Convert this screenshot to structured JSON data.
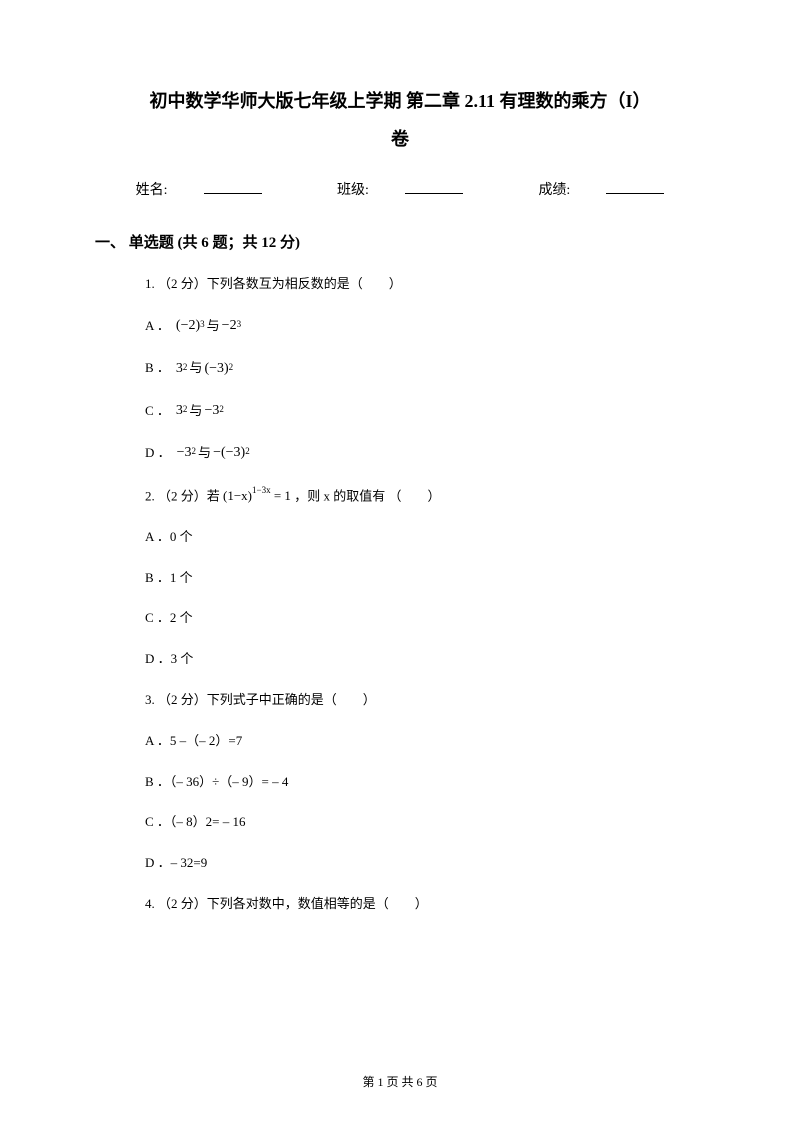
{
  "title_line1": "初中数学华师大版七年级上学期 第二章 2.11 有理数的乘方（I）",
  "title_line2": "卷",
  "info": {
    "name_label": "姓名:",
    "class_label": "班级:",
    "score_label": "成绩:"
  },
  "section1": {
    "header": "一、 单选题 (共 6 题；共 12 分)",
    "q1": {
      "text": "1. （2 分）下列各数互为相反数的是（　　）",
      "optA_label": "A ．",
      "optA_m1": "(−2)",
      "optA_e1": "3",
      "optA_mid": " 与 ",
      "optA_m2": "−2",
      "optA_e2": "3",
      "optB_label": "B ．",
      "optB_m1": "3",
      "optB_e1": "2",
      "optB_mid": " 与 ",
      "optB_m2": "(−3)",
      "optB_e2": "2",
      "optC_label": "C ．",
      "optC_m1": "3",
      "optC_e1": "2",
      "optC_mid": " 与 ",
      "optC_m2": "−3",
      "optC_e2": "2",
      "optD_label": "D ．",
      "optD_m1": "−3",
      "optD_e1": "2",
      "optD_mid": " 与 ",
      "optD_m2": "−(−3)",
      "optD_e2": "2"
    },
    "q2": {
      "prefix": "2. （2 分）若 ",
      "math_base": "(1−x)",
      "math_exp": "1−3x",
      "math_eq": " = 1",
      "suffix": " ，则 x 的取值有 （　　）",
      "optA": "A ．0 个",
      "optB": "B ．1 个",
      "optC": "C ．2 个",
      "optD": "D ．3 个"
    },
    "q3": {
      "text": "3. （2 分）下列式子中正确的是（　　）",
      "optA": "A ．5 –（– 2）=7",
      "optB": "B ．（– 36）÷（– 9）= – 4",
      "optC": "C ．（– 8）2= – 16",
      "optD": "D ．– 32=9"
    },
    "q4": {
      "text": "4. （2 分）下列各对数中，数值相等的是（　　）"
    }
  },
  "footer": "第 1 页 共 6 页",
  "colors": {
    "text": "#000000",
    "background": "#ffffff"
  }
}
